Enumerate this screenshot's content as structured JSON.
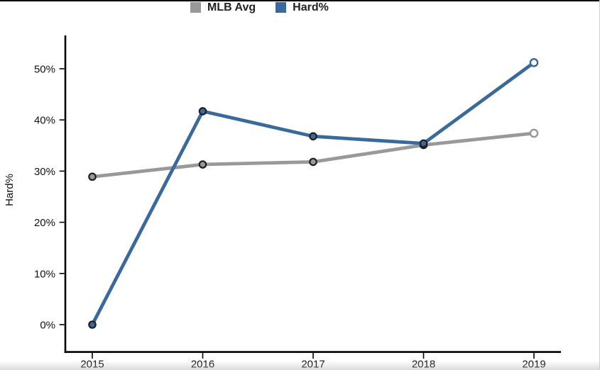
{
  "legend": {
    "items": [
      {
        "label": "MLB Avg",
        "color": "#999999"
      },
      {
        "label": "Hard%",
        "color": "#3a6a9b"
      }
    ]
  },
  "chart_data": {
    "type": "line",
    "title": "",
    "x": [
      "2015",
      "2016",
      "2017",
      "2018",
      "2019"
    ],
    "series": [
      {
        "name": "MLB Avg",
        "color": "#999999",
        "values": [
          28.9,
          31.3,
          31.8,
          35.1,
          37.4
        ]
      },
      {
        "name": "Hard%",
        "color": "#3a6a9b",
        "values": [
          0.0,
          41.7,
          36.8,
          35.4,
          51.2
        ]
      }
    ],
    "xlabel": "",
    "ylabel": "Hard%",
    "ytick_labels": [
      "0%",
      "10%",
      "20%",
      "30%",
      "40%",
      "50%"
    ],
    "ytick_values": [
      0,
      10,
      20,
      30,
      40,
      50
    ],
    "ylim": [
      0,
      56
    ],
    "grid": false,
    "legend_position": "top-center",
    "marker_style": "filled-circle-dark-ring",
    "last_point_marker_style": "hollow-circle",
    "marker_ring_color": "#1f1f1f",
    "axis_color": "#000000"
  }
}
